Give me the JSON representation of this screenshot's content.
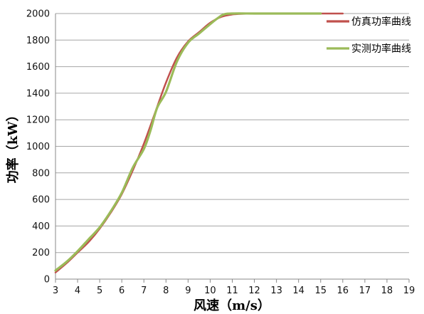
{
  "chart_data": {
    "type": "line",
    "title": "",
    "xlabel": "风速（m/s）",
    "ylabel": "功率（kW）",
    "xlim": [
      3,
      19
    ],
    "ylim": [
      0,
      2000
    ],
    "x_ticks": [
      3,
      4,
      5,
      6,
      7,
      8,
      9,
      10,
      11,
      12,
      13,
      14,
      15,
      16,
      17,
      18,
      19
    ],
    "y_ticks": [
      0,
      200,
      400,
      600,
      800,
      1000,
      1200,
      1400,
      1600,
      1800,
      2000
    ],
    "grid": {
      "horizontal": true,
      "vertical": false
    },
    "legend_position": "top-right",
    "series": [
      {
        "name": "仿真功率曲线",
        "color": "#c0504d",
        "points": [
          [
            3,
            50
          ],
          [
            3.5,
            120
          ],
          [
            4,
            200
          ],
          [
            4.5,
            280
          ],
          [
            5,
            380
          ],
          [
            5.5,
            500
          ],
          [
            6,
            640
          ],
          [
            6.5,
            820
          ],
          [
            7,
            1020
          ],
          [
            7.5,
            1250
          ],
          [
            8,
            1480
          ],
          [
            8.5,
            1670
          ],
          [
            9,
            1790
          ],
          [
            9.5,
            1860
          ],
          [
            10,
            1930
          ],
          [
            10.5,
            1975
          ],
          [
            11,
            1993
          ],
          [
            11.5,
            1998
          ],
          [
            12,
            2000
          ],
          [
            13,
            2000
          ],
          [
            14,
            2000
          ],
          [
            15,
            2000
          ],
          [
            16,
            2000
          ]
        ]
      },
      {
        "name": "实测功率曲线",
        "color": "#9bbb59",
        "points": [
          [
            3,
            65
          ],
          [
            3.5,
            130
          ],
          [
            4,
            210
          ],
          [
            4.5,
            300
          ],
          [
            5,
            390
          ],
          [
            5.5,
            510
          ],
          [
            6,
            650
          ],
          [
            6.5,
            840
          ],
          [
            7,
            980
          ],
          [
            7.3,
            1120
          ],
          [
            7.6,
            1290
          ],
          [
            8,
            1410
          ],
          [
            8.5,
            1640
          ],
          [
            9,
            1780
          ],
          [
            9.5,
            1850
          ],
          [
            10,
            1920
          ],
          [
            10.3,
            1960
          ],
          [
            10.6,
            1992
          ],
          [
            11,
            2000
          ],
          [
            12,
            2000
          ],
          [
            13,
            2000
          ],
          [
            14,
            2000
          ],
          [
            15,
            2000
          ]
        ]
      }
    ]
  }
}
